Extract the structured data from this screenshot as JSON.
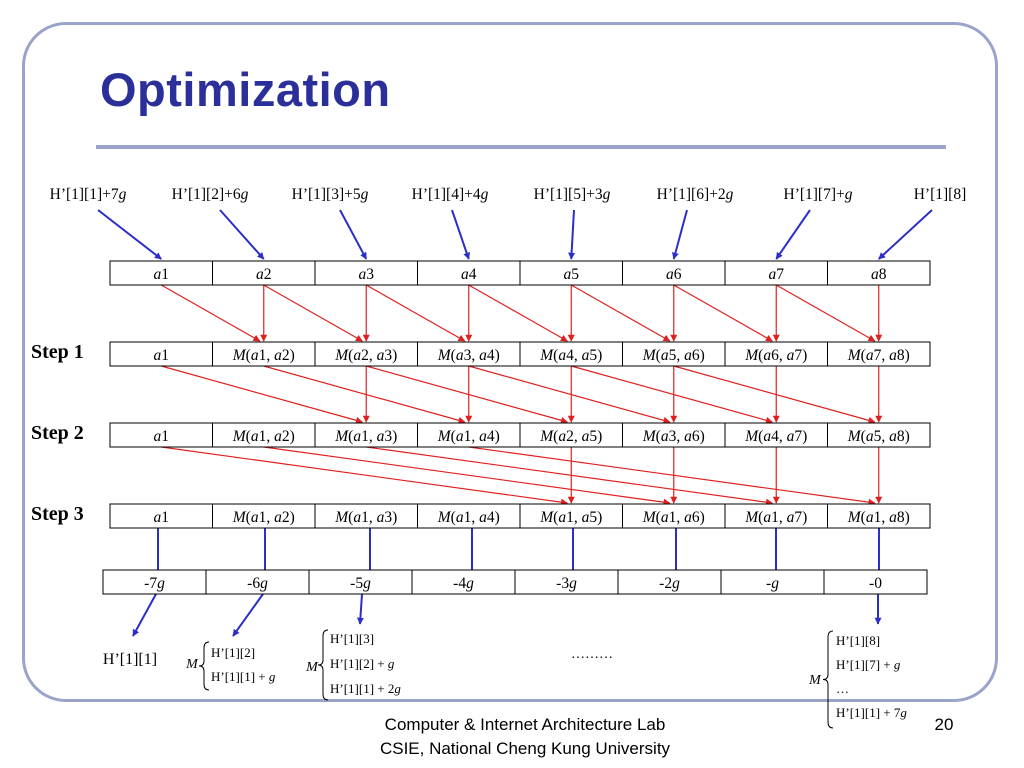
{
  "slide": {
    "title": "Optimization",
    "footer_lab": "Computer & Internet Architecture Lab",
    "footer_univ": "CSIE, National Cheng Kung University",
    "page_number": "20"
  },
  "colors": {
    "title": "#2b2f9a",
    "blue_arrow": "#2b2fc8",
    "red_arrow": "#e02020",
    "frame": "#9aa3c9"
  },
  "diagram": {
    "top_labels": [
      "H’[1][1]+7g",
      "H’[1][2]+6g",
      "H’[1][3]+5g",
      "H’[1][4]+4g",
      "H’[1][5]+3g",
      "H’[1][6]+2g",
      "H’[1][7]+g",
      "H’[1][8]"
    ],
    "steps": [
      {
        "label": "",
        "cells": [
          "a1",
          "a2",
          "a3",
          "a4",
          "a5",
          "a6",
          "a7",
          "a8"
        ]
      },
      {
        "label": "Step 1",
        "cells": [
          "a1",
          "M(a1, a2)",
          "M(a2, a3)",
          "M(a3, a4)",
          "M(a4, a5)",
          "M(a5, a6)",
          "M(a6, a7)",
          "M(a7, a8)"
        ]
      },
      {
        "label": "Step 2",
        "cells": [
          "a1",
          "M(a1, a2)",
          "M(a1, a3)",
          "M(a1, a4)",
          "M(a2, a5)",
          "M(a3, a6)",
          "M(a4, a7)",
          "M(a5, a8)"
        ]
      },
      {
        "label": "Step 3",
        "cells": [
          "a1",
          "M(a1, a2)",
          "M(a1, a3)",
          "M(a1, a4)",
          "M(a1, a5)",
          "M(a1, a6)",
          "M(a1, a7)",
          "M(a1, a8)"
        ]
      }
    ],
    "offset_cells": [
      "-7g",
      "-6g",
      "-5g",
      "-4g",
      "-3g",
      "-2g",
      "-g",
      "-0"
    ],
    "results": {
      "r1": "H’[1][1]",
      "m_symbol": "M",
      "r2": [
        "H’[1][2]",
        "H’[1][1] + g"
      ],
      "r3": [
        "H’[1][3]",
        "H’[1][2] + g",
        "H’[1][1] + 2g"
      ],
      "ellipsis": "………",
      "r8": [
        "H’[1][8]",
        "H’[1][7] + g",
        "…",
        "H’[1][1] + 7g"
      ]
    }
  }
}
